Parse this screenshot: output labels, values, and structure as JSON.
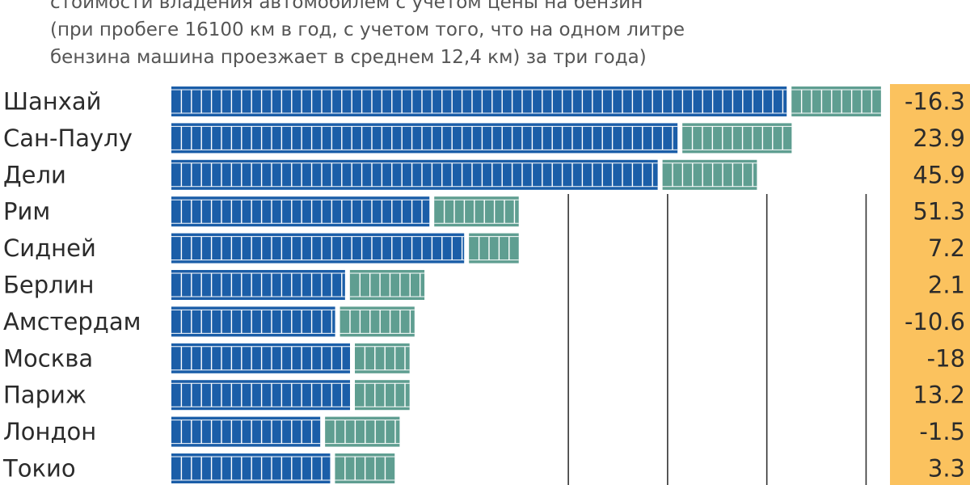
{
  "caption": {
    "lines": [
      "стоимости владения автомобилем с учетом цены на бензин",
      "(при пробеге 16100 км в год, с учетом того, что на одном литре",
      "бензина машина проезжает в среднем 12,4 км) за три года)"
    ]
  },
  "chart_data": {
    "type": "bar",
    "orientation": "horizontal",
    "stacked": true,
    "categories": [
      "Шанхай",
      "Сан-Паулу",
      "Дели",
      "Рим",
      "Сидней",
      "Берлин",
      "Амстердам",
      "Москва",
      "Париж",
      "Лондон",
      "Токио"
    ],
    "series": [
      {
        "values": [
          62,
          51,
          49,
          26,
          29.5,
          17.5,
          16.5,
          18,
          18,
          15,
          16
        ]
      },
      {
        "values": [
          9.5,
          11.5,
          10,
          9,
          5.5,
          8,
          8,
          6,
          6,
          8,
          6.5
        ]
      }
    ],
    "change_values": [
      "-16.3",
      "23.9",
      "45.9",
      "51.3",
      "7.2",
      "2.1",
      "-10.6",
      "-18",
      "13.2",
      "-1.5",
      "3.3"
    ],
    "xlim": [
      0,
      72
    ],
    "grid_values": [
      40,
      50,
      60,
      70
    ],
    "grid": true,
    "colors": {
      "series1": "#1b5ea8",
      "series2": "#5f9e91",
      "grid": "#333333",
      "change_column": "#fbc25e",
      "segment_divider": "#ffffff"
    }
  }
}
